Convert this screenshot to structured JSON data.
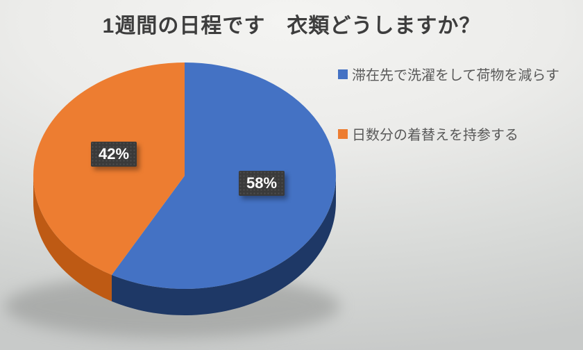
{
  "title": "1週間の日程です　衣類どうしますか？",
  "chart_data": {
    "type": "pie",
    "style": "3d",
    "title": "1週間の日程です　衣類どうしますか？",
    "categories": [
      "滞在先で洗濯をして荷物を減らす",
      "日数分の着替えを持参する"
    ],
    "values": [
      58,
      42
    ],
    "unit": "%",
    "labels": [
      "58%",
      "42%"
    ],
    "colors": [
      "#4472C4",
      "#ED7D31"
    ],
    "side_colors": [
      "#1E3866",
      "#BE5A14"
    ],
    "start_angle_deg": 0,
    "direction": "clockwise",
    "legend_position": "right",
    "data_label_bg": "#3a3a3a",
    "data_label_color": "#ffffff"
  }
}
